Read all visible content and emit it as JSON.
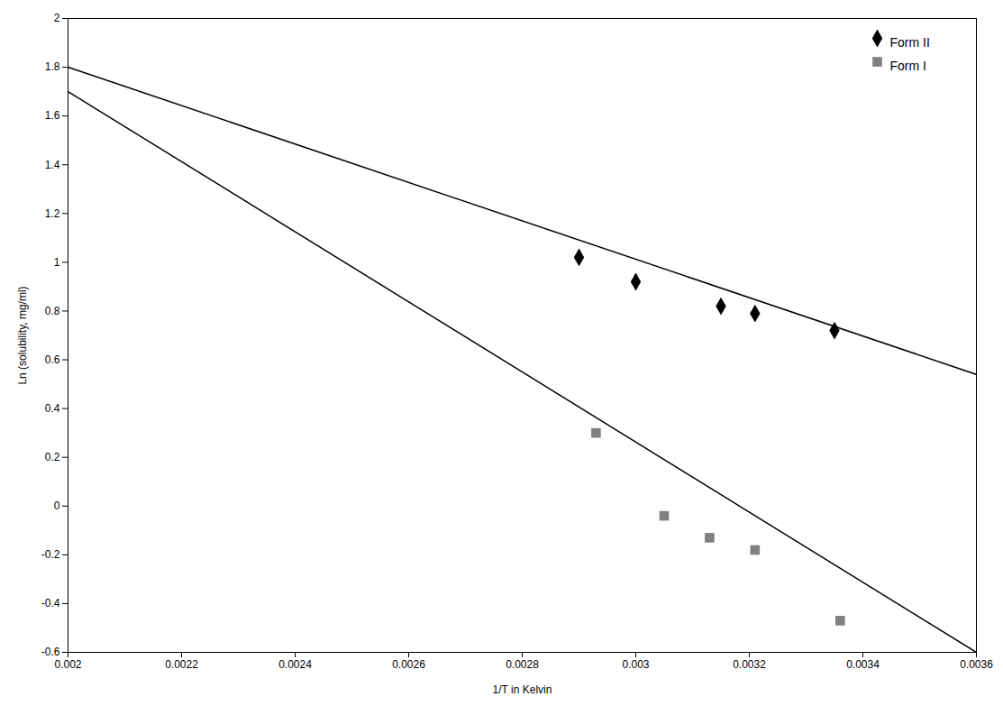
{
  "chart_data": {
    "type": "scatter",
    "xlabel": "1/T in Kelvin",
    "ylabel": "Ln (solubility, mg/ml)",
    "xlim": [
      0.002,
      0.0036
    ],
    "ylim": [
      -0.6,
      2.0
    ],
    "xticks": [
      0.002,
      0.0022,
      0.0024,
      0.0026,
      0.0028,
      0.003,
      0.0032,
      0.0034,
      0.0036
    ],
    "yticks": [
      -0.6,
      -0.4,
      -0.2,
      0,
      0.2,
      0.4,
      0.6,
      0.8,
      1,
      1.2,
      1.4,
      1.6,
      1.8,
      2
    ],
    "grid": false,
    "legend": "upper right",
    "series": [
      {
        "type": "line",
        "color": "#000000",
        "line_style": "solid",
        "x": [
          0.002,
          0.0036
        ],
        "values": [
          1.8,
          0.54
        ]
      },
      {
        "type": "line",
        "color": "#000000",
        "line_style": "solid",
        "x": [
          0.002,
          0.0036
        ],
        "values": [
          1.7,
          -0.6
        ]
      },
      {
        "type": "scatter",
        "name": "Form II",
        "color": "#000000",
        "marker": "diamond",
        "x": [
          0.0029,
          0.003,
          0.00315,
          0.00321,
          0.00335
        ],
        "values": [
          1.02,
          0.92,
          0.82,
          0.79,
          0.72
        ]
      },
      {
        "type": "scatter",
        "name": "Form I",
        "color": "#808080",
        "marker": "square",
        "x": [
          0.00293,
          0.00305,
          0.00313,
          0.00321,
          0.00336
        ],
        "values": [
          0.3,
          -0.04,
          -0.13,
          -0.18,
          -0.47
        ]
      }
    ]
  }
}
